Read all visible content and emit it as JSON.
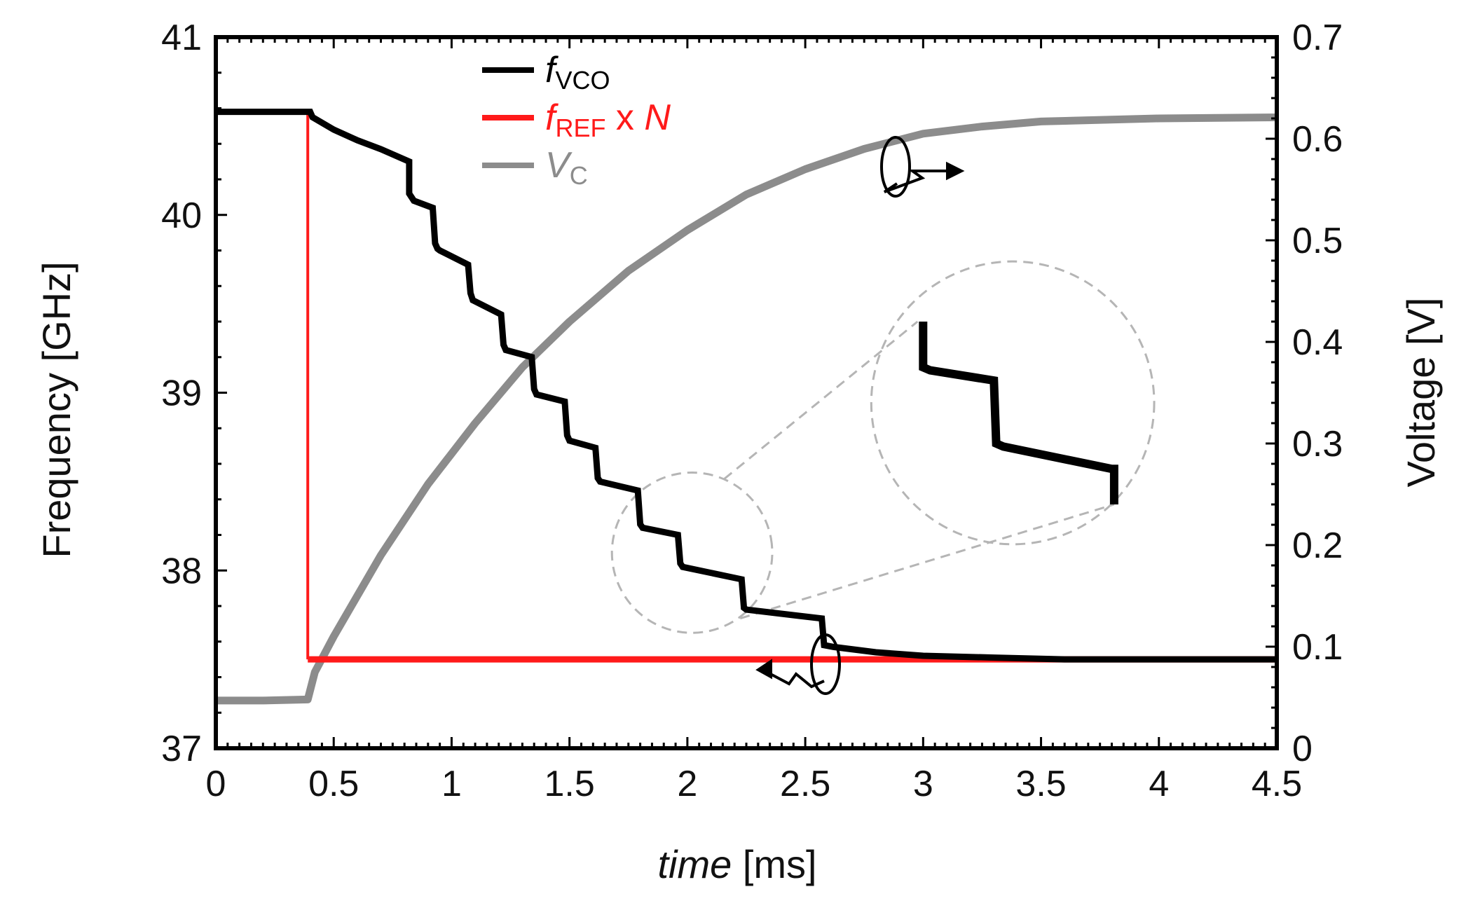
{
  "chart_data": {
    "type": "line",
    "title": "",
    "xlabel_italic": "time",
    "xlabel_rest": " [ms]",
    "ylabel": "Frequency [GHz]",
    "y2label": "Voltage [V]",
    "xlim": [
      0,
      4.5
    ],
    "ylim": [
      37,
      41
    ],
    "y2lim": [
      0,
      0.7
    ],
    "x_ticks": [
      0,
      0.5,
      1,
      1.5,
      2,
      2.5,
      3,
      3.5,
      4,
      4.5
    ],
    "x_tick_labels": [
      "0",
      "0.5",
      "1",
      "1.5",
      "2",
      "2.5",
      "3",
      "3.5",
      "4",
      "4.5"
    ],
    "y_ticks": [
      37,
      38,
      39,
      40,
      41
    ],
    "y_tick_labels": [
      "37",
      "38",
      "39",
      "40",
      "41"
    ],
    "y2_ticks": [
      0,
      0.1,
      0.2,
      0.3,
      0.4,
      0.5,
      0.6,
      0.7
    ],
    "y2_tick_labels": [
      "0",
      "0.1",
      "0.2",
      "0.3",
      "0.4",
      "0.5",
      "0.6",
      "0.7"
    ],
    "legend": {
      "placement": "top-left",
      "entries": [
        {
          "series": "fvco",
          "italic": "f",
          "sub": "VCO",
          "suffix": "",
          "suffix_italic": "",
          "color": "#000000"
        },
        {
          "series": "fref",
          "italic": "f",
          "sub": "REF",
          "suffix": " x ",
          "suffix_italic": "N",
          "color": "#ff1a1a"
        },
        {
          "series": "vc",
          "italic": "V",
          "sub": "C",
          "suffix": "",
          "suffix_italic": "",
          "color": "#8c8c8c"
        }
      ]
    },
    "series": [
      {
        "name": "fVCO",
        "axis": "left",
        "color": "#000000",
        "x": [
          0,
          0.4,
          0.41,
          0.5,
          0.6,
          0.7,
          0.82,
          0.82,
          0.84,
          0.92,
          0.93,
          0.94,
          0.95,
          1.07,
          1.08,
          1.09,
          1.21,
          1.22,
          1.23,
          1.34,
          1.35,
          1.36,
          1.48,
          1.49,
          1.5,
          1.61,
          1.62,
          1.63,
          1.79,
          1.8,
          1.81,
          1.96,
          1.97,
          1.98,
          2.23,
          2.24,
          2.25,
          2.57,
          2.58,
          2.62,
          2.8,
          3.0,
          3.3,
          3.6,
          4.0,
          4.5
        ],
        "y": [
          40.58,
          40.58,
          40.55,
          40.48,
          40.42,
          40.37,
          40.3,
          40.12,
          40.08,
          40.04,
          39.84,
          39.81,
          39.8,
          39.72,
          39.56,
          39.52,
          39.44,
          39.27,
          39.24,
          39.2,
          39.02,
          38.99,
          38.95,
          38.76,
          38.73,
          38.69,
          38.52,
          38.5,
          38.45,
          38.26,
          38.24,
          38.2,
          38.04,
          38.02,
          37.95,
          37.79,
          37.78,
          37.73,
          37.58,
          37.57,
          37.54,
          37.52,
          37.51,
          37.5,
          37.5,
          37.5
        ]
      },
      {
        "name": "fREF x N",
        "axis": "left",
        "color": "#ff1a1a",
        "x": [
          0,
          0.39,
          0.39,
          4.5
        ],
        "y": [
          40.58,
          40.58,
          37.5,
          37.5
        ]
      },
      {
        "name": "VC",
        "axis": "right",
        "color": "#8c8c8c",
        "x": [
          0,
          0.2,
          0.39,
          0.42,
          0.5,
          0.7,
          0.9,
          1.1,
          1.3,
          1.5,
          1.75,
          2.0,
          2.25,
          2.5,
          2.75,
          3.0,
          3.25,
          3.5,
          4.0,
          4.5
        ],
        "y": [
          0.047,
          0.047,
          0.048,
          0.075,
          0.11,
          0.19,
          0.26,
          0.32,
          0.375,
          0.42,
          0.47,
          0.51,
          0.545,
          0.57,
          0.59,
          0.605,
          0.612,
          0.617,
          0.62,
          0.621
        ]
      }
    ],
    "zoom_inset": {
      "description_source_region_x": [
        1.68,
        2.36
      ],
      "description_source_region_y": [
        37.7,
        38.5
      ],
      "points_x": [
        3.0,
        3.0,
        3.03,
        3.3,
        3.31,
        3.34,
        3.8,
        3.81,
        3.81
      ],
      "points_y": [
        0.42,
        0.375,
        0.372,
        0.362,
        0.3,
        0.297,
        0.275,
        0.275,
        0.24
      ]
    },
    "annotations": [
      {
        "type": "axis-pointer",
        "target": "right-axis",
        "at_x": 2.95,
        "at_y2": 0.58
      },
      {
        "type": "axis-pointer",
        "target": "left-axis",
        "at_x": 2.58,
        "at_y": 37.5
      }
    ]
  }
}
